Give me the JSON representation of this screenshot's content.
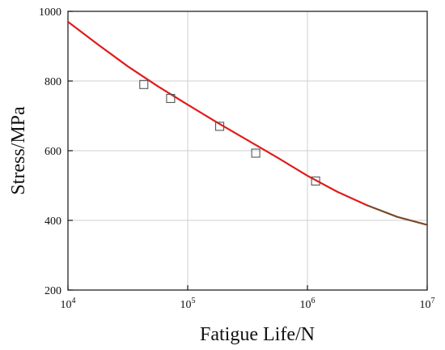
{
  "chart_data": {
    "type": "scatter",
    "xlabel": "Fatigue Life/N",
    "ylabel": "Stress/MPa",
    "xscale": "log",
    "xlim": [
      10000,
      10000000
    ],
    "ylim": [
      200,
      1000
    ],
    "grid": true,
    "x_ticks": [
      {
        "base": "10",
        "exp": "4",
        "value": 10000
      },
      {
        "base": "10",
        "exp": "5",
        "value": 100000
      },
      {
        "base": "10",
        "exp": "6",
        "value": 1000000
      },
      {
        "base": "10",
        "exp": "7",
        "value": 10000000
      }
    ],
    "y_ticks": [
      {
        "label": "200",
        "value": 200
      },
      {
        "label": "400",
        "value": 400
      },
      {
        "label": "600",
        "value": 600
      },
      {
        "label": "800",
        "value": 800
      },
      {
        "label": "1000",
        "value": 1000
      }
    ],
    "series": [
      {
        "type": "scatter",
        "marker": "square",
        "color": "#555555",
        "points": [
          {
            "x": 43000,
            "y": 790
          },
          {
            "x": 72000,
            "y": 750
          },
          {
            "x": 185000,
            "y": 670
          },
          {
            "x": 370000,
            "y": 593
          },
          {
            "x": 1170000,
            "y": 513
          }
        ]
      },
      {
        "type": "line",
        "color": "#e11b1b",
        "tail_color": "#7a4a2a",
        "points": [
          {
            "x": 10000,
            "y": 970
          },
          {
            "x": 17783,
            "y": 905
          },
          {
            "x": 31623,
            "y": 842
          },
          {
            "x": 56234,
            "y": 785
          },
          {
            "x": 100000,
            "y": 732
          },
          {
            "x": 177828,
            "y": 680
          },
          {
            "x": 316228,
            "y": 630
          },
          {
            "x": 562341,
            "y": 580
          },
          {
            "x": 1000000,
            "y": 528
          },
          {
            "x": 1778279,
            "y": 482
          },
          {
            "x": 3162278,
            "y": 443
          },
          {
            "x": 5623413,
            "y": 410
          },
          {
            "x": 10000000,
            "y": 387
          }
        ]
      }
    ]
  }
}
